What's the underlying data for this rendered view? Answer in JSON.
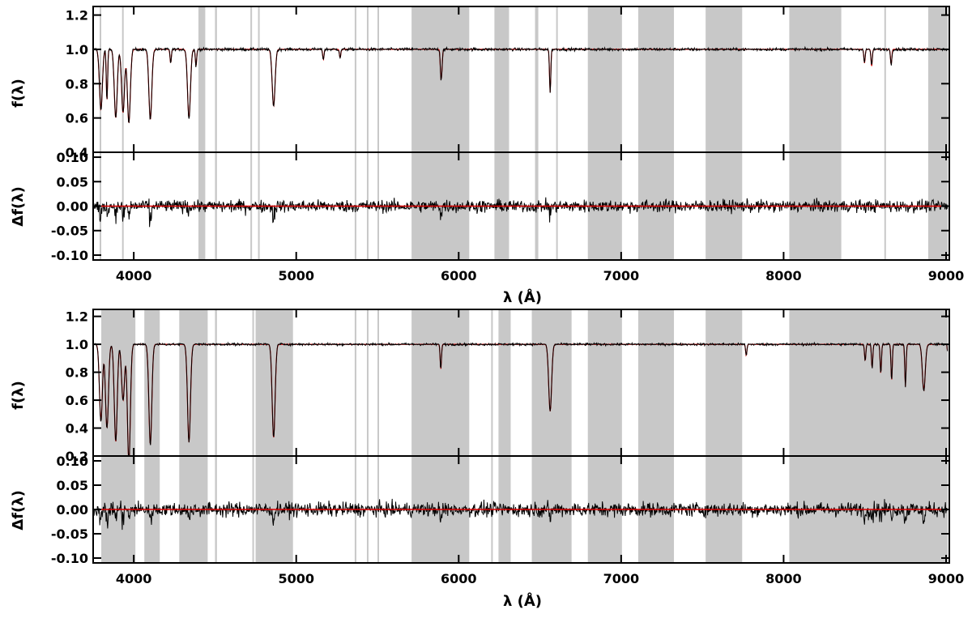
{
  "chart_data": [
    {
      "type": "line",
      "panel": "upper",
      "spectrum": {
        "ylabel": "f(λ)",
        "ylim": [
          0.4,
          1.25
        ],
        "yticks": [
          "0.4",
          "0.6",
          "0.8",
          "1.0",
          "1.2"
        ],
        "ytick_values": [
          0.4,
          0.6,
          0.8,
          1.0,
          1.2
        ],
        "absorption_lines": [
          {
            "wl": 3798,
            "depth": 0.35
          },
          {
            "wl": 3835,
            "depth": 0.3
          },
          {
            "wl": 3889,
            "depth": 0.4
          },
          {
            "wl": 3934,
            "depth": 0.37
          },
          {
            "wl": 3970,
            "depth": 0.43
          },
          {
            "wl": 4102,
            "depth": 0.41
          },
          {
            "wl": 4227,
            "depth": 0.08
          },
          {
            "wl": 4340,
            "depth": 0.4
          },
          {
            "wl": 4383,
            "depth": 0.1
          },
          {
            "wl": 4861,
            "depth": 0.33
          },
          {
            "wl": 5167,
            "depth": 0.06
          },
          {
            "wl": 5270,
            "depth": 0.05
          },
          {
            "wl": 5890,
            "depth": 0.13
          },
          {
            "wl": 5896,
            "depth": 0.1
          },
          {
            "wl": 6563,
            "depth": 0.25
          },
          {
            "wl": 8498,
            "depth": 0.08
          },
          {
            "wl": 8542,
            "depth": 0.1
          },
          {
            "wl": 8662,
            "depth": 0.09
          }
        ]
      },
      "residual": {
        "ylabel": "Δf(λ)",
        "ylim": [
          -0.11,
          0.11
        ],
        "yticks": [
          "-0.10",
          "-0.05",
          "0.00",
          "0.05",
          "0.10"
        ],
        "ytick_values": [
          -0.1,
          -0.05,
          0.0,
          0.05,
          0.1
        ],
        "noise_level": 0.012
      },
      "masked_regions": [
        [
          3790,
          3800
        ],
        [
          3928,
          3938
        ],
        [
          4398,
          4440
        ],
        [
          4500,
          4512
        ],
        [
          4718,
          4728
        ],
        [
          4765,
          4775
        ],
        [
          5360,
          5370
        ],
        [
          5435,
          5445
        ],
        [
          5500,
          5510
        ],
        [
          5710,
          6065
        ],
        [
          6220,
          6310
        ],
        [
          6470,
          6490
        ],
        [
          6600,
          6610
        ],
        [
          6795,
          7005
        ],
        [
          7105,
          7325
        ],
        [
          7520,
          7745
        ],
        [
          8035,
          8355
        ],
        [
          8620,
          8630
        ],
        [
          8890,
          9010
        ]
      ],
      "series": [
        {
          "name": "",
          "color": "#000000"
        },
        {
          "name": "",
          "color": "#dd0000"
        }
      ]
    },
    {
      "type": "line",
      "panel": "lower",
      "spectrum": {
        "ylabel": "f(λ)",
        "ylim": [
          0.2,
          1.25
        ],
        "yticks": [
          "0.2",
          "0.4",
          "0.6",
          "0.8",
          "1.0",
          "1.2"
        ],
        "ytick_values": [
          0.2,
          0.4,
          0.6,
          0.8,
          1.0,
          1.2
        ],
        "absorption_lines": [
          {
            "wl": 3798,
            "depth": 0.55
          },
          {
            "wl": 3835,
            "depth": 0.6
          },
          {
            "wl": 3889,
            "depth": 0.7
          },
          {
            "wl": 3934,
            "depth": 0.4
          },
          {
            "wl": 3970,
            "depth": 0.85
          },
          {
            "wl": 4102,
            "depth": 0.72
          },
          {
            "wl": 4340,
            "depth": 0.7
          },
          {
            "wl": 4861,
            "depth": 0.67
          },
          {
            "wl": 5890,
            "depth": 0.18
          },
          {
            "wl": 6563,
            "depth": 0.48
          },
          {
            "wl": 7770,
            "depth": 0.08
          },
          {
            "wl": 8502,
            "depth": 0.12
          },
          {
            "wl": 8545,
            "depth": 0.17
          },
          {
            "wl": 8598,
            "depth": 0.21
          },
          {
            "wl": 8665,
            "depth": 0.26
          },
          {
            "wl": 8750,
            "depth": 0.3
          },
          {
            "wl": 8863,
            "depth": 0.33
          },
          {
            "wl": 9015,
            "depth": 0.2
          }
        ]
      },
      "residual": {
        "ylabel": "Δf(λ)",
        "ylim": [
          -0.11,
          0.11
        ],
        "yticks": [
          "-0.10",
          "-0.05",
          "0.00",
          "0.05",
          "0.10"
        ],
        "ytick_values": [
          -0.1,
          -0.05,
          0.0,
          0.05,
          0.1
        ],
        "noise_level": 0.014
      },
      "masked_regions": [
        [
          3800,
          4010
        ],
        [
          4065,
          4160
        ],
        [
          4280,
          4455
        ],
        [
          4500,
          4512
        ],
        [
          4730,
          4738
        ],
        [
          4750,
          4980
        ],
        [
          5360,
          5370
        ],
        [
          5435,
          5445
        ],
        [
          5500,
          5510
        ],
        [
          5710,
          6065
        ],
        [
          6200,
          6210
        ],
        [
          6245,
          6320
        ],
        [
          6450,
          6695
        ],
        [
          6795,
          7005
        ],
        [
          7105,
          7325
        ],
        [
          7520,
          7745
        ],
        [
          8035,
          9010
        ]
      ],
      "series": [
        {
          "name": "",
          "color": "#000000"
        },
        {
          "name": "",
          "color": "#dd0000"
        }
      ]
    }
  ],
  "axes": {
    "xlabel": "λ (Å)",
    "xlim": [
      3750,
      9020
    ],
    "xticks": [
      "4000",
      "5000",
      "6000",
      "7000",
      "8000",
      "9000"
    ],
    "xtick_values": [
      4000,
      5000,
      6000,
      7000,
      8000,
      9000
    ]
  },
  "colors": {
    "mask": "#c8c8c8",
    "data": "#000000",
    "model": "#dd0000"
  }
}
